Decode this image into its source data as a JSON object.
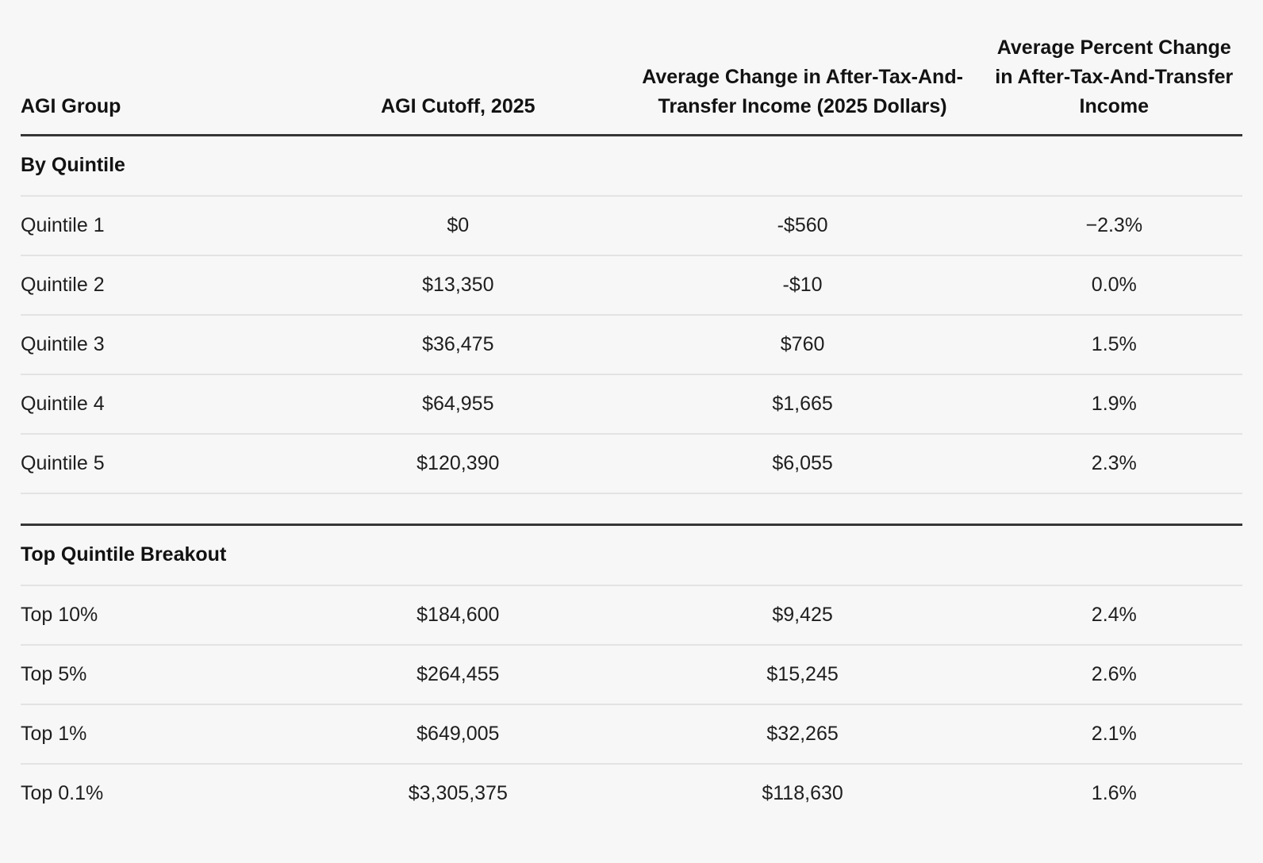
{
  "colors": {
    "background": "#f7f7f7",
    "text": "#1e1e1e",
    "heading_text": "#121212",
    "thick_border": "#363636",
    "thin_border": "#e3e3e3"
  },
  "chart_data": {
    "type": "table",
    "columns": [
      "AGI Group",
      "AGI Cutoff, 2025",
      "Average Change in After-Tax-And-Transfer Income (2025 Dollars)",
      "Average Percent Change in After-Tax-And-Transfer Income"
    ],
    "sections": [
      {
        "title": "By Quintile",
        "rows": [
          {
            "group": "Quintile 1",
            "cutoff": "$0",
            "avg_change": "-$560",
            "pct_change": "−2.3%"
          },
          {
            "group": "Quintile 2",
            "cutoff": "$13,350",
            "avg_change": "-$10",
            "pct_change": "0.0%"
          },
          {
            "group": "Quintile 3",
            "cutoff": "$36,475",
            "avg_change": "$760",
            "pct_change": "1.5%"
          },
          {
            "group": "Quintile 4",
            "cutoff": "$64,955",
            "avg_change": "$1,665",
            "pct_change": "1.9%"
          },
          {
            "group": "Quintile 5",
            "cutoff": "$120,390",
            "avg_change": "$6,055",
            "pct_change": "2.3%"
          }
        ]
      },
      {
        "title": "Top Quintile Breakout",
        "rows": [
          {
            "group": "Top 10%",
            "cutoff": "$184,600",
            "avg_change": "$9,425",
            "pct_change": "2.4%"
          },
          {
            "group": "Top 5%",
            "cutoff": "$264,455",
            "avg_change": "$15,245",
            "pct_change": "2.6%"
          },
          {
            "group": "Top 1%",
            "cutoff": "$649,005",
            "avg_change": "$32,265",
            "pct_change": "2.1%"
          },
          {
            "group": "Top 0.1%",
            "cutoff": "$3,305,375",
            "avg_change": "$118,630",
            "pct_change": "1.6%"
          }
        ]
      }
    ]
  }
}
